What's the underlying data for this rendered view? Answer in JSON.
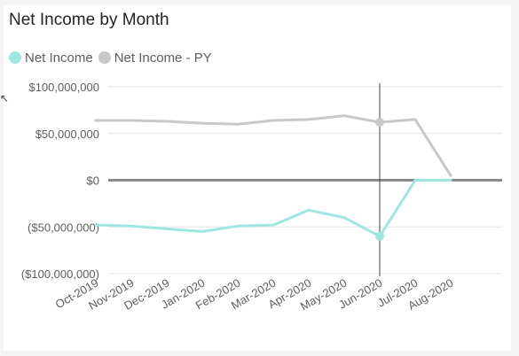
{
  "header": {
    "title": "Net Income by Month"
  },
  "legend": [
    {
      "label": "Net Income",
      "color": "#9ee7e0"
    },
    {
      "label": "Net Income - PY",
      "color": "#c8c8c8"
    }
  ],
  "chart_data": {
    "type": "line",
    "title": "Net Income by Month",
    "categories": [
      "Oct-2019",
      "Nov-2019",
      "Dec-2019",
      "Jan-2020",
      "Feb-2020",
      "Mar-2020",
      "Apr-2020",
      "May-2020",
      "Jun-2020",
      "Jul-2020",
      "Aug-2020"
    ],
    "series": [
      {
        "name": "Net Income",
        "color": "#9ee7e0",
        "values": [
          -48000000,
          -49000000,
          -52000000,
          -55000000,
          -49000000,
          -48000000,
          -32000000,
          -40000000,
          -60000000,
          0,
          0
        ]
      },
      {
        "name": "Net Income - PY",
        "color": "#c8c8c8",
        "values": [
          64000000,
          64000000,
          63000000,
          61000000,
          60000000,
          64000000,
          65000000,
          69000000,
          62000000,
          65000000,
          5000000
        ]
      }
    ],
    "ylim": [
      -100000000,
      100000000
    ],
    "yticks": [
      100000000,
      50000000,
      0,
      -50000000,
      -100000000
    ],
    "ytick_labels": [
      "$100,000,000",
      "$50,000,000",
      "$0",
      "($50,000,000)",
      "($100,000,000)"
    ],
    "zero_line_color": "#8a8a8a",
    "gridline_color": "#e6e6e6",
    "highlight_category": "Jun-2020",
    "grid": true,
    "legend_position": "top-left"
  }
}
